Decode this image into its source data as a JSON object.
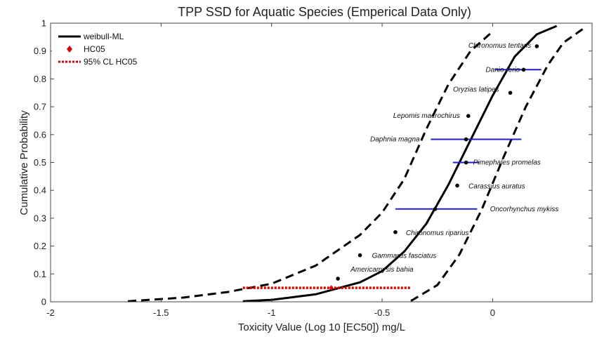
{
  "chart_data": {
    "type": "scatter",
    "title": "TPP SSD for Aquatic Species (Emperical Data Only)",
    "xlabel": "Toxicity Value (Log 10 [EC50]) mg/L",
    "ylabel": "Cumulative Probability",
    "xlim": [
      -2,
      0.45
    ],
    "ylim": [
      0,
      1
    ],
    "xticks": [
      -2,
      -1.5,
      -1,
      -0.5,
      0
    ],
    "xtick_labels": [
      "-2",
      "-1.5",
      "-1",
      "-0.5",
      "0"
    ],
    "yticks": [
      0,
      0.1,
      0.2,
      0.3,
      0.4,
      0.5,
      0.6,
      0.7,
      0.8,
      0.9,
      1
    ],
    "ytick_labels": [
      "0",
      "0.1",
      "0.2",
      "0.3",
      "0.4",
      "0.5",
      "0.6",
      "0.7",
      "0.8",
      "0.9",
      "1"
    ],
    "grid": false,
    "legend_position": "top-left",
    "legend": [
      {
        "label": "weibull-ML",
        "style": "solid",
        "color": "#000000"
      },
      {
        "label": "HC05",
        "style": "diamond",
        "color": "#dd0000"
      },
      {
        "label": "95% CL HC05",
        "style": "dotted",
        "color": "#dd0000"
      }
    ],
    "points": [
      {
        "species": "Americamysis  bahia",
        "x": -0.7,
        "y": 0.083
      },
      {
        "species": "Gammarus  fasciatus",
        "x": -0.6,
        "y": 0.167
      },
      {
        "species": "Chironomus  riparius",
        "x": -0.44,
        "y": 0.25
      },
      {
        "species": "Oncorhynchus mykiss",
        "x": -0.26,
        "y": 0.333
      },
      {
        "species": "Carassius  auratus",
        "x": -0.16,
        "y": 0.417
      },
      {
        "species": "Pimephales  promelas",
        "x": -0.12,
        "y": 0.5
      },
      {
        "species": "Daphnia magna",
        "x": -0.12,
        "y": 0.583
      },
      {
        "species": "Lepomis  macrochirus",
        "x": -0.11,
        "y": 0.667
      },
      {
        "species": "Oryzias latipes",
        "x": 0.08,
        "y": 0.75
      },
      {
        "species": "Danio rerio",
        "x": 0.14,
        "y": 0.833
      },
      {
        "species": "Chironomus  tentans",
        "x": 0.2,
        "y": 0.917
      }
    ],
    "error_bars": [
      {
        "y": 0.833,
        "x_low": 0.01,
        "x_high": 0.22
      },
      {
        "y": 0.583,
        "x_low": -0.28,
        "x_high": 0.13
      },
      {
        "y": 0.5,
        "x_low": -0.18,
        "x_high": -0.06
      },
      {
        "y": 0.333,
        "x_low": -0.44,
        "x_high": -0.07
      }
    ],
    "fit_curve": {
      "name": "weibull-ML",
      "points": [
        [
          -1.13,
          0.002
        ],
        [
          -1.0,
          0.007
        ],
        [
          -0.8,
          0.027
        ],
        [
          -0.6,
          0.07
        ],
        [
          -0.5,
          0.11
        ],
        [
          -0.4,
          0.18
        ],
        [
          -0.3,
          0.28
        ],
        [
          -0.2,
          0.42
        ],
        [
          -0.1,
          0.58
        ],
        [
          0.0,
          0.74
        ],
        [
          0.1,
          0.88
        ],
        [
          0.2,
          0.96
        ],
        [
          0.29,
          0.99
        ]
      ]
    },
    "lower_cl_curve": {
      "points": [
        [
          -1.65,
          0.002
        ],
        [
          -1.4,
          0.015
        ],
        [
          -1.2,
          0.035
        ],
        [
          -1.0,
          0.065
        ],
        [
          -0.8,
          0.13
        ],
        [
          -0.6,
          0.24
        ],
        [
          -0.5,
          0.32
        ],
        [
          -0.4,
          0.44
        ],
        [
          -0.3,
          0.62
        ],
        [
          -0.2,
          0.78
        ],
        [
          -0.1,
          0.9
        ],
        [
          0.0,
          0.97
        ]
      ]
    },
    "upper_cl_curve": {
      "points": [
        [
          -0.37,
          0.003
        ],
        [
          -0.25,
          0.06
        ],
        [
          -0.15,
          0.17
        ],
        [
          -0.05,
          0.33
        ],
        [
          0.05,
          0.52
        ],
        [
          0.15,
          0.7
        ],
        [
          0.25,
          0.85
        ],
        [
          0.32,
          0.93
        ],
        [
          0.41,
          0.98
        ]
      ]
    },
    "hc05": {
      "x": -0.73,
      "y": 0.05
    },
    "hc05_cl": {
      "y": 0.05,
      "x_low": -1.13,
      "x_high": -0.37
    }
  }
}
